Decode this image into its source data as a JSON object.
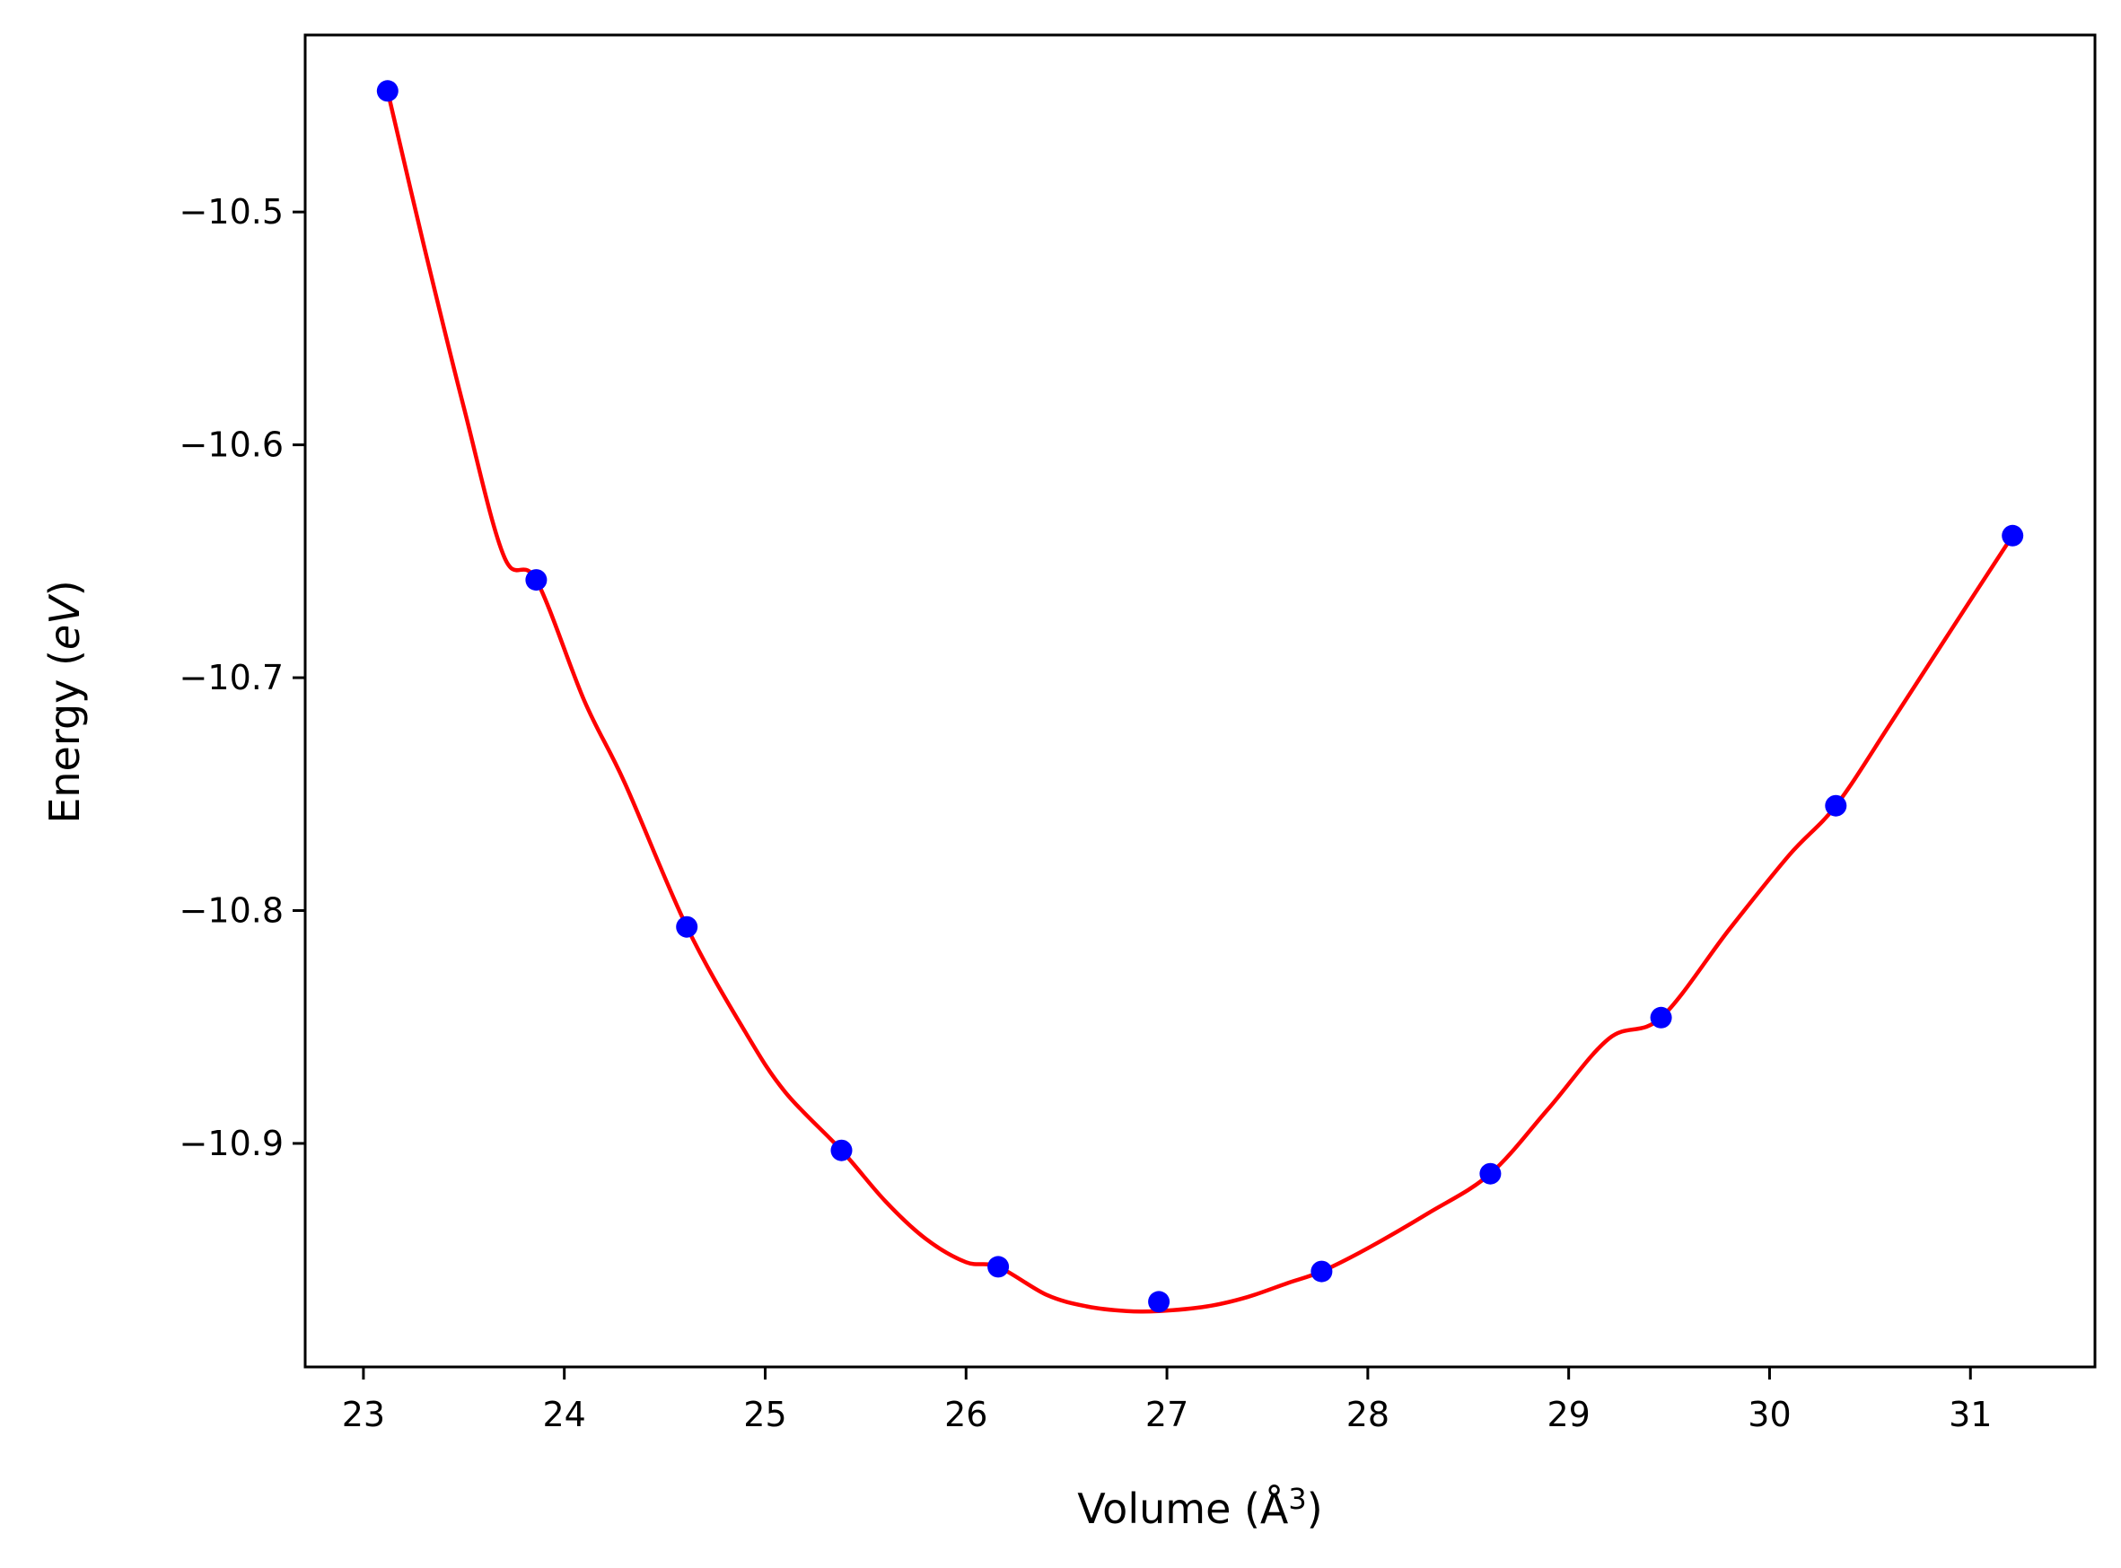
{
  "chart_data": {
    "type": "scatter",
    "xlabel": "Volume (Å",
    "xlabel_sup": "3",
    "xlabel_end": ")",
    "ylabel": "Energy (",
    "ylabel_unit": "eV",
    "ylabel_end": ")",
    "xlim": [
      22.71,
      31.62
    ],
    "ylim": [
      -10.996,
      -10.424
    ],
    "xticks": [
      23,
      24,
      25,
      26,
      27,
      28,
      29,
      30,
      31
    ],
    "yticks": [
      -10.9,
      -10.8,
      -10.7,
      -10.6,
      -10.5
    ],
    "ytick_labels": [
      "−10.9",
      "−10.8",
      "−10.7",
      "−10.6",
      "−10.5"
    ],
    "grid": false,
    "series": [
      {
        "kind": "points",
        "color": "#0000ff",
        "x": [
          23.12,
          23.86,
          24.61,
          25.38,
          26.16,
          26.96,
          27.77,
          28.61,
          29.46,
          30.33,
          31.21
        ],
        "y": [
          -10.448,
          -10.658,
          -10.807,
          -10.903,
          -10.953,
          -10.968,
          -10.955,
          -10.913,
          -10.846,
          -10.755,
          -10.639
        ]
      },
      {
        "kind": "fit-curve",
        "color": "#ff0000",
        "x": [
          23.12,
          23.3,
          23.5,
          23.7,
          23.86,
          24.1,
          24.3,
          24.61,
          24.9,
          25.1,
          25.38,
          25.6,
          25.8,
          26.0,
          26.16,
          26.4,
          26.6,
          26.8,
          26.96,
          27.2,
          27.4,
          27.6,
          27.77,
          28.0,
          28.3,
          28.61,
          28.9,
          29.2,
          29.46,
          29.8,
          30.1,
          30.33,
          30.6,
          30.9,
          31.21
        ],
        "y": [
          -10.448,
          -10.514,
          -10.584,
          -10.648,
          -10.658,
          -10.71,
          -10.745,
          -10.807,
          -10.852,
          -10.878,
          -10.903,
          -10.925,
          -10.941,
          -10.951,
          -10.953,
          -10.965,
          -10.97,
          -10.972,
          -10.972,
          -10.97,
          -10.966,
          -10.96,
          -10.955,
          -10.945,
          -10.93,
          -10.913,
          -10.885,
          -10.855,
          -10.846,
          -10.808,
          -10.776,
          -10.755,
          -10.72,
          -10.68,
          -10.639
        ]
      }
    ]
  }
}
